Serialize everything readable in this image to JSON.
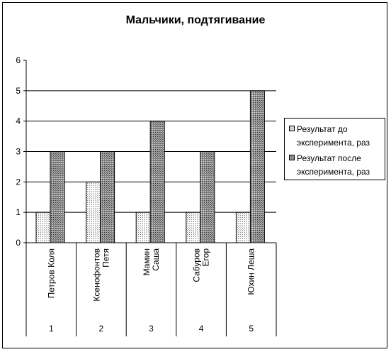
{
  "chart_data": {
    "type": "bar",
    "title": "Мальчики,  подтягивание",
    "categories": [
      {
        "name": "Петров Коля",
        "index": "1"
      },
      {
        "name": "Ксенофонтов Петя",
        "index": "2"
      },
      {
        "name": "Мамин Саша",
        "index": "3"
      },
      {
        "name": "Сабуров Егор",
        "index": "4"
      },
      {
        "name": "Юхин Леша",
        "index": "5"
      }
    ],
    "category_name_lines": [
      [
        "Петров Коля"
      ],
      [
        "Ксенофонтов",
        "Петя"
      ],
      [
        "Мамин",
        "Саша"
      ],
      [
        "Сабуров",
        "Егор"
      ],
      [
        "Юхин Леша"
      ]
    ],
    "series": [
      {
        "name": "Результат до эксперимента, раз",
        "values": [
          1,
          2,
          1,
          1,
          1
        ],
        "color": "#e8e8e8"
      },
      {
        "name": "Результат после эксперимента, раз",
        "values": [
          3,
          3,
          4,
          3,
          5
        ],
        "color": "#8c8c8c"
      }
    ],
    "ylim": [
      0,
      6
    ],
    "yticks": [
      "0",
      "1",
      "2",
      "3",
      "4",
      "5",
      "6"
    ],
    "grid": true,
    "legend_position": "right"
  }
}
